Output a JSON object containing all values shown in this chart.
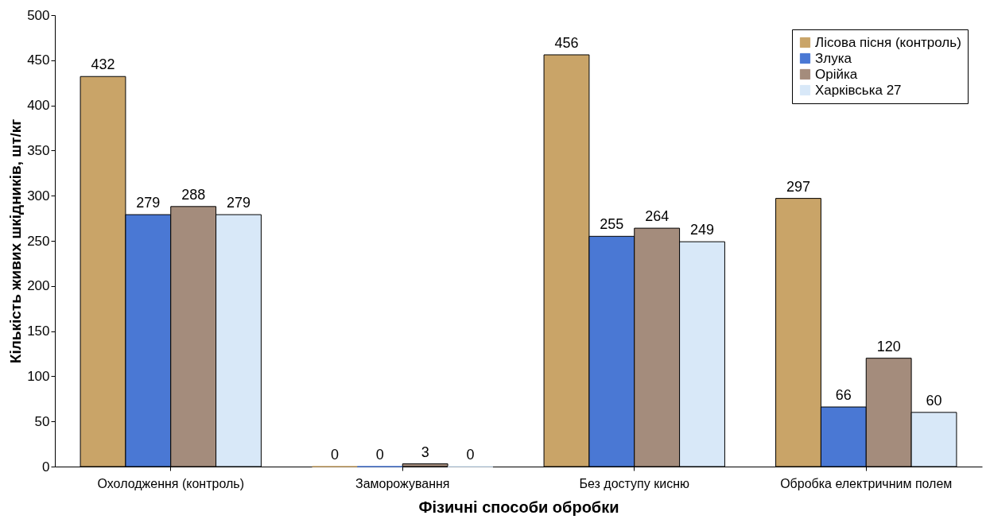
{
  "chart_data": {
    "type": "bar",
    "xlabel": "Фізичні способи обробки",
    "ylabel": "Кількість живих шкідників, шт/кг",
    "categories": [
      "Охолодження (контроль)",
      "Заморожування",
      "Без доступу кисню",
      "Обробка електричним полем"
    ],
    "series": [
      {
        "name": "Лісова пісня (контроль)",
        "color": "#c9a468",
        "values": [
          432,
          0,
          456,
          297
        ]
      },
      {
        "name": "Злука",
        "color": "#4a78d4",
        "values": [
          279,
          0,
          255,
          66
        ]
      },
      {
        "name": "Орійка",
        "color": "#a48c7c",
        "values": [
          288,
          3,
          264,
          120
        ]
      },
      {
        "name": "Харківська 27",
        "color": "#d8e8f8",
        "values": [
          279,
          0,
          249,
          60
        ]
      }
    ],
    "ylim": [
      0,
      500
    ],
    "yticks": [
      0,
      50,
      100,
      150,
      200,
      250,
      300,
      350,
      400,
      450,
      500
    ],
    "grid": false,
    "legend": "top right",
    "data_labels": true
  }
}
